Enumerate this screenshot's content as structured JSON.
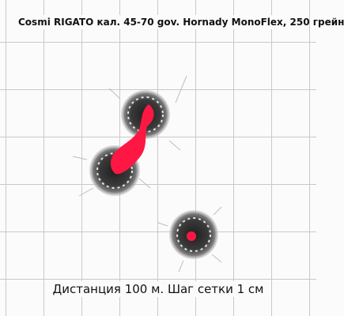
{
  "target": {
    "title": "Cosmi RIGATO кал. 45-70 gov. Hornady MonoFlex, 250 грейн",
    "caption": "Дистанция 100 м. Шаг сетки 1 см"
  },
  "colors": {
    "paper": "#fbfbfb",
    "grid": "#c9c9c9",
    "hole_scorch": "#2b2b2b",
    "hole_center": "#ff1744"
  }
}
